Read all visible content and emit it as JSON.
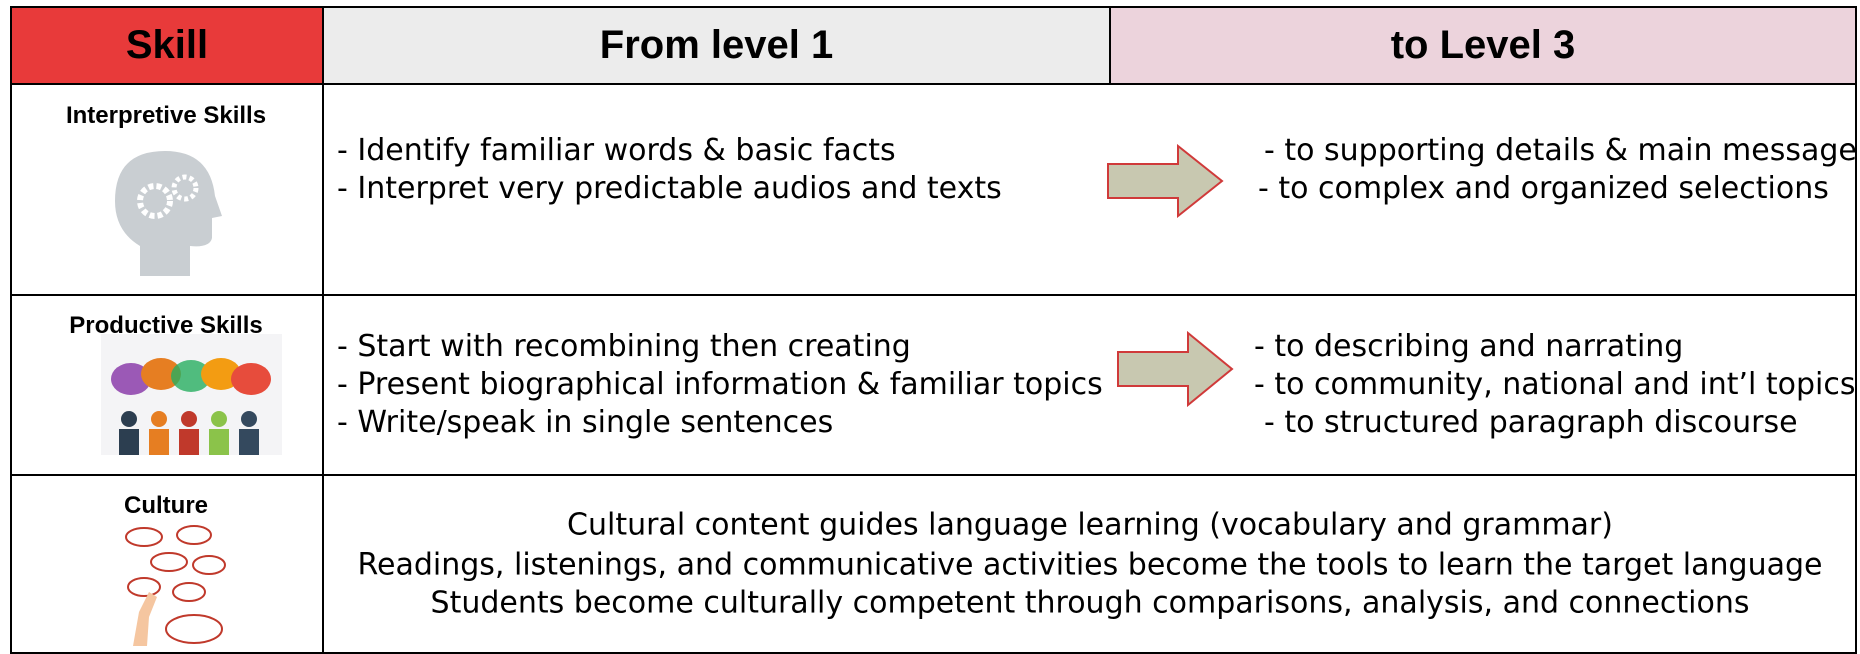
{
  "header": {
    "skill": "Skill",
    "from": "From level 1",
    "to": "to Level 3"
  },
  "rows": [
    {
      "skill": "Interpretive Skills",
      "from": [
        "- Identify familiar words & basic facts",
        "- Interpret very predictable audios and texts"
      ],
      "to": [
        "- to supporting details & main message",
        "-  to complex and organized selections"
      ]
    },
    {
      "skill": "Productive Skills",
      "from": [
        "- Start with recombining then creating",
        "- Present biographical information & familiar topics",
        "- Write/speak in single sentences"
      ],
      "to": [
        "- to describing and narrating",
        "- to community, national and int’l topics",
        "- to structured paragraph discourse"
      ]
    },
    {
      "skill": "Culture",
      "lines": [
        "Cultural content guides language learning (vocabulary and grammar)",
        "Readings, listenings, and communicative activities become the tools to learn the target language",
        "Students become culturally competent through comparisons, analysis, and connections"
      ]
    }
  ]
}
